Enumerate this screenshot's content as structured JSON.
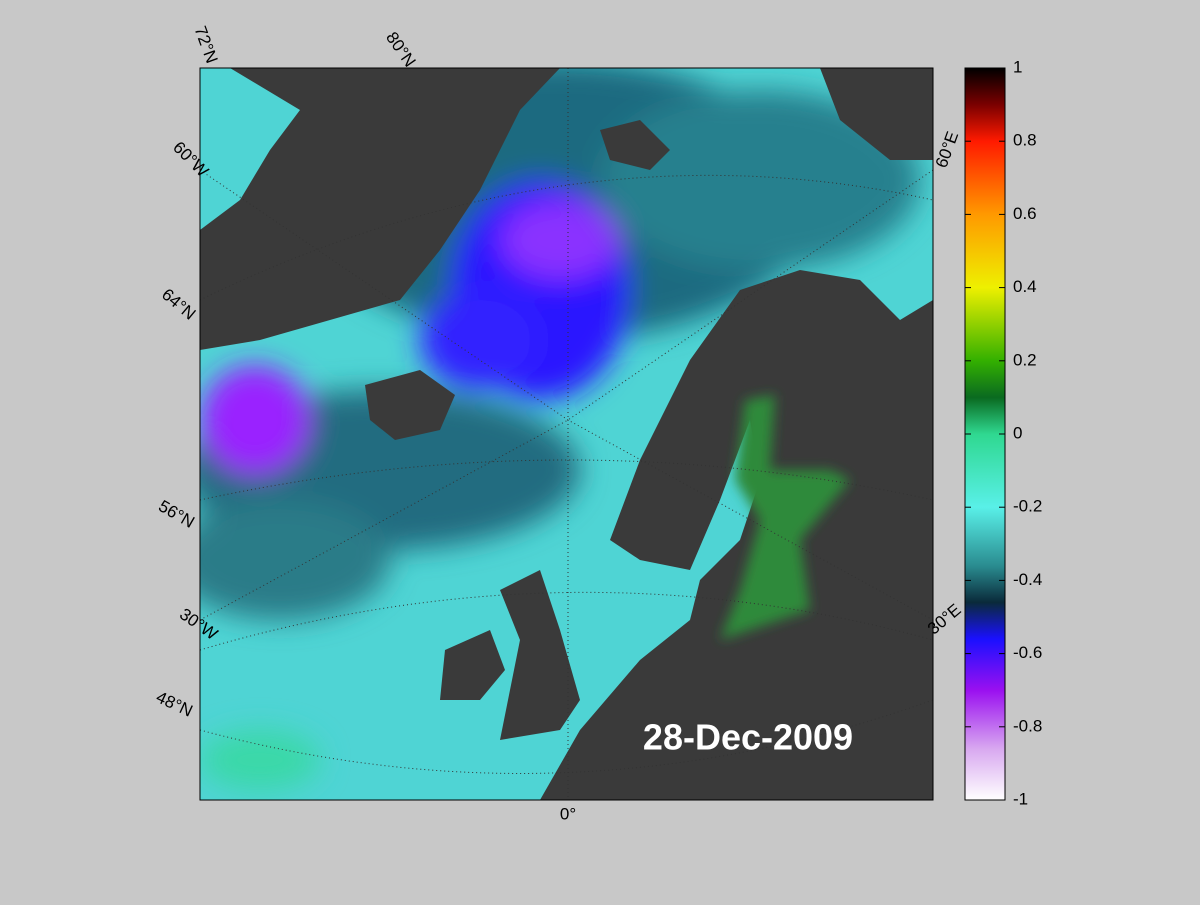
{
  "map": {
    "date": "28-Dec-2009",
    "graticule_labels": [
      "72°N",
      "80°N",
      "60°W",
      "64°N",
      "56°N",
      "30°W",
      "48°N",
      "0°",
      "30°E",
      "60°E"
    ],
    "colorbar": {
      "lim": [
        -1,
        1
      ],
      "ticks": [
        1,
        0.8,
        0.6,
        0.4,
        0.2,
        0,
        -0.2,
        -0.4,
        -0.6,
        -0.8,
        -1
      ]
    }
  }
}
